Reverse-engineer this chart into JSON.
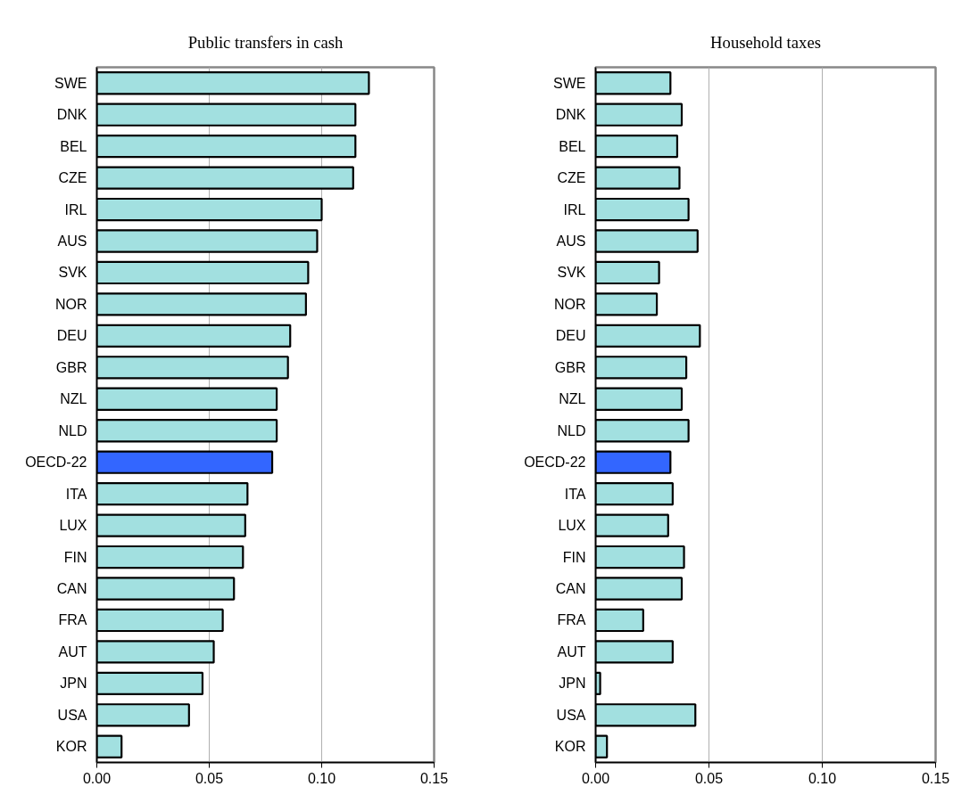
{
  "chart_data": [
    {
      "type": "bar",
      "orientation": "horizontal",
      "title": "Public transfers in cash",
      "categories": [
        "SWE",
        "DNK",
        "BEL",
        "CZE",
        "IRL",
        "AUS",
        "SVK",
        "NOR",
        "DEU",
        "GBR",
        "NZL",
        "NLD",
        "OECD-22",
        "ITA",
        "LUX",
        "FIN",
        "CAN",
        "FRA",
        "AUT",
        "JPN",
        "USA",
        "KOR"
      ],
      "values": [
        0.121,
        0.115,
        0.115,
        0.114,
        0.1,
        0.098,
        0.094,
        0.093,
        0.086,
        0.085,
        0.08,
        0.08,
        0.078,
        0.067,
        0.066,
        0.065,
        0.061,
        0.056,
        0.052,
        0.047,
        0.041,
        0.011
      ],
      "colors": [
        "#a2e0e0",
        "#a2e0e0",
        "#a2e0e0",
        "#a2e0e0",
        "#a2e0e0",
        "#a2e0e0",
        "#a2e0e0",
        "#a2e0e0",
        "#a2e0e0",
        "#a2e0e0",
        "#a2e0e0",
        "#a2e0e0",
        "#3366ff",
        "#a2e0e0",
        "#a2e0e0",
        "#a2e0e0",
        "#a2e0e0",
        "#a2e0e0",
        "#a2e0e0",
        "#a2e0e0",
        "#a2e0e0",
        "#a2e0e0"
      ],
      "xlim": [
        0,
        0.15
      ],
      "xticks": [
        {
          "value": 0,
          "label": "0.00"
        },
        {
          "value": 0.05,
          "label": "0.05"
        },
        {
          "value": 0.1,
          "label": "0.10"
        },
        {
          "value": 0.15,
          "label": "0.15"
        }
      ],
      "grid": "x"
    },
    {
      "type": "bar",
      "orientation": "horizontal",
      "title": "Household taxes",
      "categories": [
        "SWE",
        "DNK",
        "BEL",
        "CZE",
        "IRL",
        "AUS",
        "SVK",
        "NOR",
        "DEU",
        "GBR",
        "NZL",
        "NLD",
        "OECD-22",
        "ITA",
        "LUX",
        "FIN",
        "CAN",
        "FRA",
        "AUT",
        "JPN",
        "USA",
        "KOR"
      ],
      "values": [
        0.033,
        0.038,
        0.036,
        0.037,
        0.041,
        0.045,
        0.028,
        0.027,
        0.046,
        0.04,
        0.038,
        0.041,
        0.033,
        0.034,
        0.032,
        0.039,
        0.038,
        0.021,
        0.034,
        0.002,
        0.044,
        0.005
      ],
      "colors": [
        "#a2e0e0",
        "#a2e0e0",
        "#a2e0e0",
        "#a2e0e0",
        "#a2e0e0",
        "#a2e0e0",
        "#a2e0e0",
        "#a2e0e0",
        "#a2e0e0",
        "#a2e0e0",
        "#a2e0e0",
        "#a2e0e0",
        "#3366ff",
        "#a2e0e0",
        "#a2e0e0",
        "#a2e0e0",
        "#a2e0e0",
        "#a2e0e0",
        "#a2e0e0",
        "#a2e0e0",
        "#a2e0e0",
        "#a2e0e0"
      ],
      "xlim": [
        0,
        0.15
      ],
      "xticks": [
        {
          "value": 0,
          "label": "0.00"
        },
        {
          "value": 0.05,
          "label": "0.05"
        },
        {
          "value": 0.1,
          "label": "0.10"
        },
        {
          "value": 0.15,
          "label": "0.15"
        }
      ],
      "grid": "x"
    }
  ]
}
